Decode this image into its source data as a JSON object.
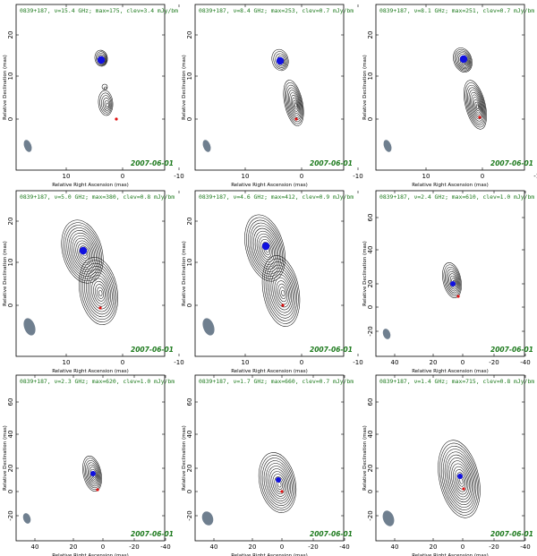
{
  "colors": {
    "contour": "#111111",
    "title_text": "#1d7a1d",
    "beam": "#6f7f8f",
    "marker_blue": "#1010e0",
    "marker_red": "#e01010"
  },
  "panels": [
    {
      "title": "0839+187, ν=15.4 GHz; max=175, clev=3.4 mJy/bm",
      "date": "2007-06-01",
      "xlabel": "Relative Right Ascension (mas)",
      "ylabel": "Relative Declination (mas)",
      "xticks": [
        "10",
        "0",
        "-10"
      ],
      "yticks": [
        "20",
        "10",
        "0"
      ]
    },
    {
      "title": "0839+187, ν=8.4 GHz; max=253, clev=0.7 mJy/bm",
      "date": "2007-06-01",
      "xlabel": "Relative Right Ascension (mas)",
      "ylabel": "Relative Declination (mas)",
      "xticks": [
        "10",
        "0",
        "-10"
      ],
      "yticks": [
        "20",
        "10",
        "0"
      ]
    },
    {
      "title": "0839+187, ν=8.1 GHz; max=251, clev=0.7 mJy/bm",
      "date": "2007-06-01",
      "xlabel": "Relative Right Ascension (mas)",
      "ylabel": "Relative Declination (mas)",
      "xticks": [
        "10",
        "0",
        "-10"
      ],
      "yticks": [
        "20",
        "10",
        "0"
      ]
    },
    {
      "title": "0839+187, ν=5.0 GHz; max=380, clev=0.8 mJy/bm",
      "date": "2007-06-01",
      "xlabel": "Relative Right Ascension (mas)",
      "ylabel": "Relative Declination (mas)",
      "xticks": [
        "10",
        "0",
        "-10"
      ],
      "yticks": [
        "20",
        "10",
        "0"
      ]
    },
    {
      "title": "0839+187, ν=4.6 GHz; max=412, clev=0.9 mJy/bm",
      "date": "2007-06-01",
      "xlabel": "Relative Right Ascension (mas)",
      "ylabel": "Relative Declination (mas)",
      "xticks": [
        "10",
        "0",
        "-10"
      ],
      "yticks": [
        "20",
        "10",
        "0"
      ]
    },
    {
      "title": "0839+187, ν=2.4 GHz; max=610, clev=1.0 mJy/bm",
      "date": "2007-06-01",
      "xlabel": "Relative Right Ascension (mas)",
      "ylabel": "Relative Declination (mas)",
      "xticks": [
        "40",
        "20",
        "0",
        "-20",
        "-40"
      ],
      "yticks": [
        "60",
        "40",
        "20",
        "0",
        "-20"
      ]
    },
    {
      "title": "0839+187, ν=2.3 GHz; max=620, clev=1.0 mJy/bm",
      "date": "2007-06-01",
      "xlabel": "Relative Right Ascension (mas)",
      "ylabel": "Relative Declination (mas)",
      "xticks": [
        "40",
        "20",
        "0",
        "-20",
        "-40"
      ],
      "yticks": [
        "60",
        "40",
        "20",
        "0",
        "-20"
      ]
    },
    {
      "title": "0839+187, ν=1.7 GHz; max=660, clev=0.7 mJy/bm",
      "date": "2007-06-01",
      "xlabel": "Relative Right Ascension (mas)",
      "ylabel": "Relative Declination (mas)",
      "xticks": [
        "40",
        "20",
        "0",
        "-20",
        "-40"
      ],
      "yticks": [
        "60",
        "40",
        "20",
        "0",
        "-20"
      ]
    },
    {
      "title": "0839+187, ν=1.4 GHz; max=715, clev=0.8 mJy/bm",
      "date": "2007-06-01",
      "xlabel": "Relative Right Ascension (mas)",
      "ylabel": "Relative Declination (mas)",
      "xticks": [
        "40",
        "20",
        "0",
        "-20",
        "-40"
      ],
      "yticks": [
        "60",
        "40",
        "20",
        "0",
        "-20"
      ]
    }
  ]
}
